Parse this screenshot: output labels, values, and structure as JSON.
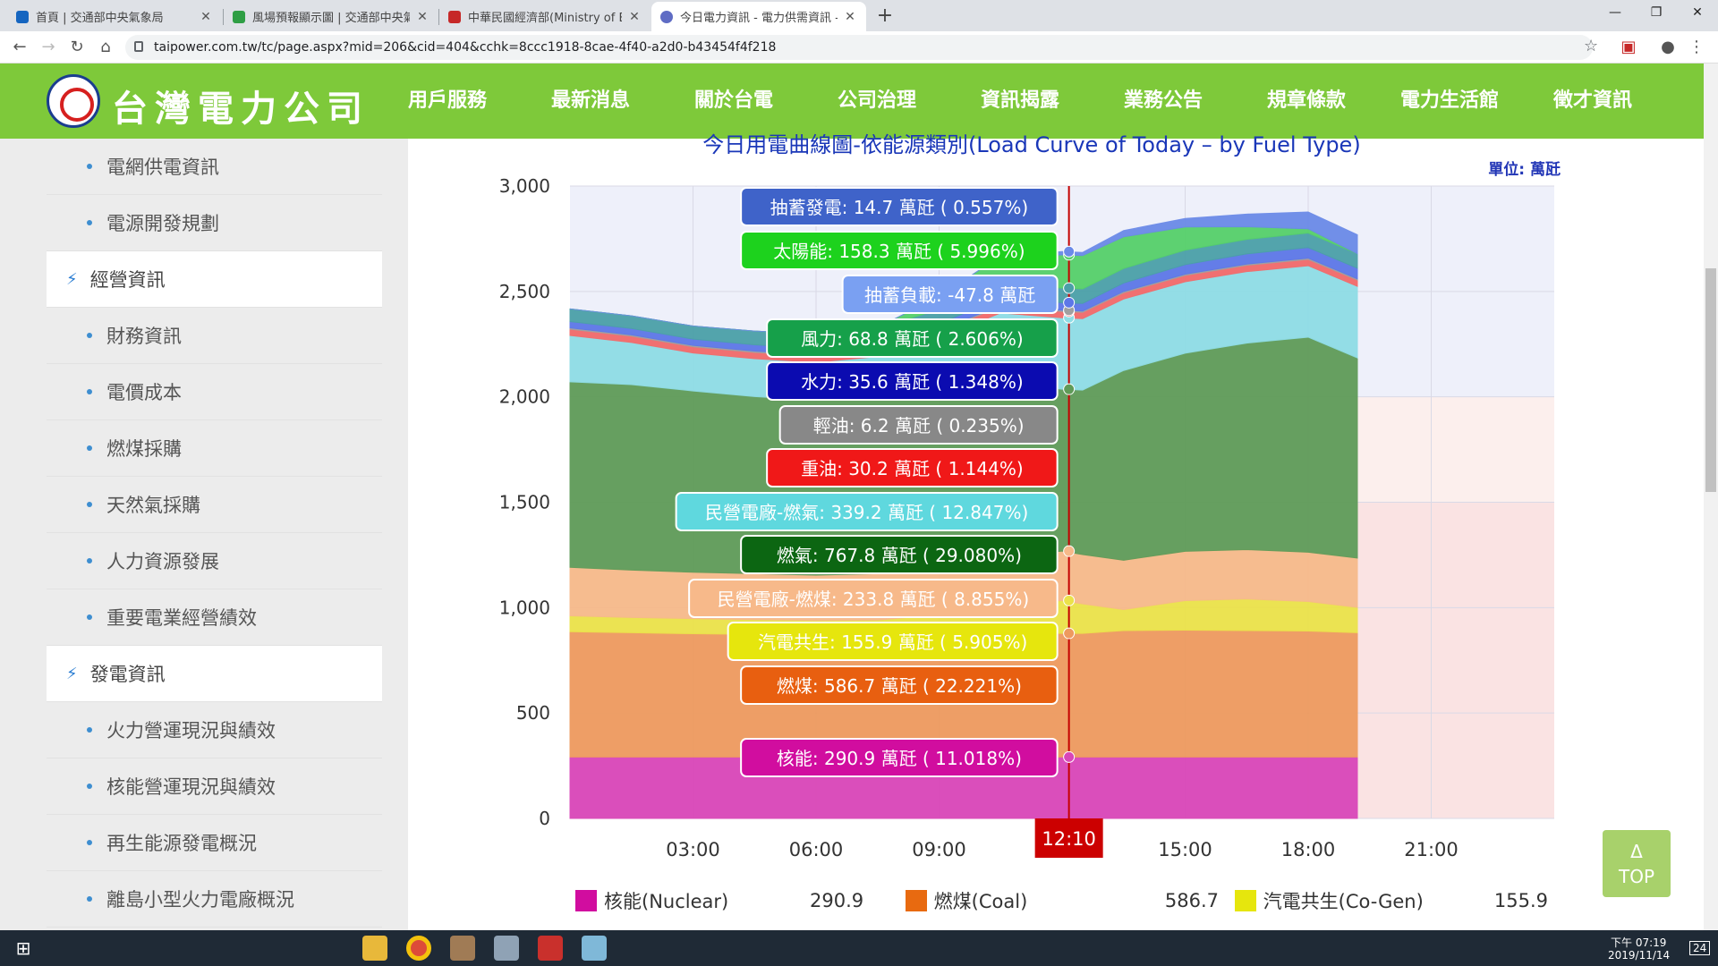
{
  "browser": {
    "tabs": [
      {
        "title": "首頁 | 交通部中央氣象局",
        "color": "#1565c0"
      },
      {
        "title": "風場預報顯示圖 | 交通部中央氣象局",
        "color": "#2e9e44"
      },
      {
        "title": "中華民國經濟部(Ministry of Economic Affairs)",
        "color": "#c62828"
      },
      {
        "title": "今日電力資訊 - 電力供需資訊 - 資訊揭露",
        "color": "#5f6cc4"
      }
    ],
    "new_tab": "+",
    "url": "taipower.com.tw/tc/page.aspx?mid=206&cid=404&cchk=8ccc1918-8cae-4f40-a2d0-b43454f4f218"
  },
  "site": {
    "logo": "台灣電力公司",
    "nav": [
      "用戶服務",
      "最新消息",
      "關於台電",
      "公司治理",
      "資訊揭露",
      "業務公告",
      "規章條款",
      "電力生活館",
      "徵才資訊"
    ]
  },
  "sidebar": {
    "items": [
      {
        "label": "電網供電資訊",
        "type": "sub"
      },
      {
        "label": "電源開發規劃",
        "type": "sub"
      },
      {
        "label": "經營資訊",
        "type": "head"
      },
      {
        "label": "財務資訊",
        "type": "sub"
      },
      {
        "label": "電價成本",
        "type": "sub"
      },
      {
        "label": "燃煤採購",
        "type": "sub"
      },
      {
        "label": "天然氣採購",
        "type": "sub"
      },
      {
        "label": "人力資源發展",
        "type": "sub"
      },
      {
        "label": "重要電業經營績效",
        "type": "sub"
      },
      {
        "label": "發電資訊",
        "type": "head"
      },
      {
        "label": "火力營運現況與績效",
        "type": "sub"
      },
      {
        "label": "核能營運現況與績效",
        "type": "sub"
      },
      {
        "label": "再生能源發電概況",
        "type": "sub"
      },
      {
        "label": "離島小型火力電廠概況",
        "type": "sub"
      }
    ]
  },
  "chart_data": {
    "type": "area",
    "title": "今日用電曲線圖-依能源類別(Load Curve of Today – by Fuel Type)",
    "unit_label": "單位: 萬瓩",
    "ylim": [
      0,
      3000
    ],
    "yticks": [
      "3,000",
      "2,500",
      "2,000",
      "1,500",
      "1,000",
      "500",
      "0"
    ],
    "ytick_values": [
      3000,
      2500,
      2000,
      1500,
      1000,
      500,
      0
    ],
    "xticks": [
      "03:00",
      "06:00",
      "09:00",
      "12:10",
      "15:00",
      "18:00",
      "21:00"
    ],
    "xtick_hours": [
      3,
      6,
      9,
      12.1667,
      15,
      18,
      21
    ],
    "xlim_hours": [
      0,
      24
    ],
    "cursor": {
      "label": "12:10",
      "hour": 12.1667
    },
    "data_end_hour": 19.2,
    "x_hours": [
      0,
      1.5,
      3,
      4.5,
      6,
      7.5,
      9,
      10.5,
      12,
      12.5,
      13.5,
      15,
      16.5,
      18,
      19.2
    ],
    "series": [
      {
        "name": "核能",
        "color": "#d946b8",
        "values": [
          291,
          291,
          291,
          291,
          291,
          291,
          291,
          291,
          291,
          291,
          291,
          291,
          291,
          291,
          291
        ]
      },
      {
        "name": "燃煤",
        "color": "#ee9a5f",
        "values": [
          595,
          590,
          585,
          582,
          580,
          582,
          585,
          587,
          587,
          587,
          600,
          602,
          600,
          598,
          590
        ]
      },
      {
        "name": "汽電共生",
        "color": "#ebe24a",
        "values": [
          75,
          72,
          72,
          70,
          68,
          68,
          90,
          130,
          156,
          140,
          100,
          140,
          150,
          140,
          120
        ]
      },
      {
        "name": "民營電廠-燃煤",
        "color": "#f7b98a",
        "values": [
          230,
          225,
          220,
          218,
          215,
          220,
          225,
          230,
          234,
          234,
          234,
          234,
          234,
          234,
          234
        ]
      },
      {
        "name": "燃氣",
        "color": "#5f9b58",
        "values": [
          880,
          880,
          860,
          840,
          830,
          830,
          830,
          830,
          768,
          780,
          900,
          940,
          980,
          1020,
          950
        ]
      },
      {
        "name": "民營電廠-燃氣",
        "color": "#8fdde5",
        "values": [
          220,
          200,
          180,
          180,
          180,
          200,
          260,
          330,
          339,
          339,
          339,
          339,
          339,
          339,
          339
        ]
      },
      {
        "name": "重油",
        "color": "#f26a6a",
        "values": [
          30,
          30,
          30,
          30,
          30,
          30,
          30,
          30,
          30,
          30,
          30,
          30,
          30,
          30,
          30
        ]
      },
      {
        "name": "輕油",
        "color": "#a0a0a0",
        "values": [
          6,
          6,
          6,
          6,
          6,
          6,
          6,
          6,
          6,
          6,
          6,
          6,
          6,
          6,
          6
        ]
      },
      {
        "name": "水力",
        "color": "#5d77e8",
        "values": [
          30,
          30,
          30,
          30,
          30,
          30,
          30,
          35,
          36,
          36,
          40,
          45,
          48,
          50,
          50
        ]
      },
      {
        "name": "風力",
        "color": "#4ba0a8",
        "values": [
          60,
          60,
          62,
          65,
          68,
          68,
          68,
          69,
          69,
          69,
          69,
          69,
          69,
          69,
          69
        ]
      },
      {
        "name": "太陽能",
        "color": "#56d06a",
        "values": [
          0,
          0,
          0,
          0,
          0,
          5,
          60,
          130,
          158,
          158,
          150,
          110,
          60,
          20,
          0
        ]
      },
      {
        "name": "抽蓄發電",
        "color": "#6b8ae8",
        "values": [
          0,
          0,
          0,
          0,
          0,
          0,
          0,
          0,
          15,
          15,
          30,
          40,
          60,
          80,
          90
        ]
      }
    ],
    "tooltips": [
      {
        "text": "抽蓄發電: 14.7 萬瓩 ( 0.557%)",
        "bg": "#3f63c9",
        "fg": "#ffffff"
      },
      {
        "text": "太陽能: 158.3 萬瓩 ( 5.996%)",
        "bg": "#1dd21d",
        "fg": "#ffffff"
      },
      {
        "text": "抽蓄負載: -47.8 萬瓩",
        "bg": "#7aa0f2",
        "fg": "#ffffff"
      },
      {
        "text": "風力: 68.8 萬瓩 ( 2.606%)",
        "bg": "#16a04a",
        "fg": "#ffffff"
      },
      {
        "text": "水力: 35.6 萬瓩 ( 1.348%)",
        "bg": "#0b0bb0",
        "fg": "#ffffff"
      },
      {
        "text": "輕油: 6.2 萬瓩 ( 0.235%)",
        "bg": "#888888",
        "fg": "#ffffff"
      },
      {
        "text": "重油: 30.2 萬瓩 ( 1.144%)",
        "bg": "#f01818",
        "fg": "#ffffff"
      },
      {
        "text": "民營電廠-燃氣: 339.2 萬瓩 ( 12.847%)",
        "bg": "#5fd8de",
        "fg": "#ffffff"
      },
      {
        "text": "燃氣: 767.8 萬瓩 ( 29.080%)",
        "bg": "#0c6612",
        "fg": "#ffffff"
      },
      {
        "text": "民營電廠-燃煤: 233.8 萬瓩 ( 8.855%)",
        "bg": "#f7b98a",
        "fg": "#ffffff"
      },
      {
        "text": "汽電共生: 155.9 萬瓩 ( 5.905%)",
        "bg": "#e6e60d",
        "fg": "#ffffff"
      },
      {
        "text": "燃煤: 586.7 萬瓩 ( 22.221%)",
        "bg": "#e85f10",
        "fg": "#ffffff"
      },
      {
        "text": "核能: 290.9 萬瓩 ( 11.018%)",
        "bg": "#d10d9f",
        "fg": "#ffffff"
      }
    ],
    "legend": [
      {
        "label": "核能(Nuclear)",
        "value": "290.9",
        "color": "#d10d9f"
      },
      {
        "label": "燃煤(Coal)",
        "value": "586.7",
        "color": "#e86a10"
      },
      {
        "label": "汽電共生(Co-Gen)",
        "value": "155.9",
        "color": "#e6e60d"
      }
    ]
  },
  "top_button": {
    "arrow": "Δ",
    "label": "TOP"
  },
  "taskbar": {
    "time": "下午 07:19",
    "date": "2019/11/14",
    "badge": "24"
  }
}
